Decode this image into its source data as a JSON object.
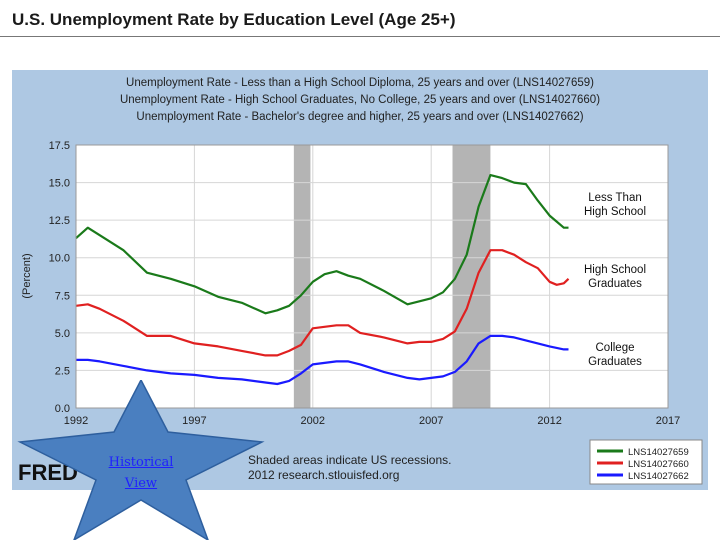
{
  "slide": {
    "title": "U.S. Unemployment Rate by Education Level (Age 25+)"
  },
  "star_link": {
    "line1": "Historical",
    "line2": "View"
  },
  "chart_data": {
    "type": "line",
    "title_lines": [
      "Unemployment Rate - Less than a High School Diploma, 25 years and over (LNS14027659)",
      "Unemployment Rate - High School Graduates, No College, 25 years and over (LNS14027660)",
      "Unemployment Rate - Bachelor's degree and higher, 25 years and over (LNS14027662)"
    ],
    "ylabel": "(Percent)",
    "xlim": [
      1992,
      2017
    ],
    "ylim": [
      0,
      17.5
    ],
    "xticks": [
      1992,
      1997,
      2002,
      2007,
      2012,
      2017
    ],
    "xtick_labels": [
      "1992",
      "1997",
      "2002",
      "2007",
      "2012",
      "2017"
    ],
    "yticks": [
      0,
      2.5,
      5,
      7.5,
      10,
      12.5,
      15,
      17.5
    ],
    "ytick_labels": [
      "0.0",
      "2.5",
      "5.0",
      "7.5",
      "10.0",
      "12.5",
      "15.0",
      "17.5"
    ],
    "grid": true,
    "recessions": [
      [
        2001.2,
        2001.9
      ],
      [
        2007.9,
        2009.5
      ]
    ],
    "recession_color": "#b4b4b4",
    "series": [
      {
        "name": "LNS14027659",
        "annotation": [
          "Less Than",
          "High School"
        ],
        "color": "#1a7a1a",
        "x": [
          1992,
          1992.5,
          1993,
          1994,
          1995,
          1996,
          1997,
          1998,
          1999,
          2000,
          2000.5,
          2001,
          2001.5,
          2002,
          2002.5,
          2003,
          2003.5,
          2004,
          2005,
          2006,
          2006.5,
          2007,
          2007.5,
          2008,
          2008.5,
          2009,
          2009.5,
          2010,
          2010.5,
          2011,
          2011.5,
          2012,
          2012.3,
          2012.6,
          2012.8
        ],
        "values": [
          11.3,
          12.0,
          11.5,
          10.5,
          9.0,
          8.6,
          8.1,
          7.4,
          7.0,
          6.3,
          6.5,
          6.8,
          7.5,
          8.4,
          8.9,
          9.1,
          8.8,
          8.6,
          7.8,
          6.9,
          7.1,
          7.3,
          7.7,
          8.6,
          10.2,
          13.4,
          15.5,
          15.3,
          15.0,
          14.9,
          13.8,
          12.8,
          12.4,
          12.0,
          12.0
        ]
      },
      {
        "name": "LNS14027660",
        "annotation": [
          "High School",
          "Graduates"
        ],
        "color": "#e02020",
        "x": [
          1992,
          1992.5,
          1993,
          1994,
          1995,
          1996,
          1997,
          1998,
          1999,
          2000,
          2000.5,
          2001,
          2001.5,
          2002,
          2002.5,
          2003,
          2003.5,
          2004,
          2005,
          2006,
          2006.5,
          2007,
          2007.5,
          2008,
          2008.5,
          2009,
          2009.5,
          2010,
          2010.5,
          2011,
          2011.5,
          2012,
          2012.3,
          2012.6,
          2012.8
        ],
        "values": [
          6.8,
          6.9,
          6.6,
          5.8,
          4.8,
          4.8,
          4.3,
          4.1,
          3.8,
          3.5,
          3.5,
          3.8,
          4.2,
          5.3,
          5.4,
          5.5,
          5.5,
          5.0,
          4.7,
          4.3,
          4.4,
          4.4,
          4.6,
          5.1,
          6.6,
          9.0,
          10.5,
          10.5,
          10.2,
          9.7,
          9.3,
          8.4,
          8.2,
          8.3,
          8.6
        ]
      },
      {
        "name": "LNS14027662",
        "annotation": [
          "College",
          "Graduates"
        ],
        "color": "#1a1aff",
        "x": [
          1992,
          1992.5,
          1993,
          1994,
          1995,
          1996,
          1997,
          1998,
          1999,
          2000,
          2000.5,
          2001,
          2001.5,
          2002,
          2002.5,
          2003,
          2003.5,
          2004,
          2005,
          2006,
          2006.5,
          2007,
          2007.5,
          2008,
          2008.5,
          2009,
          2009.5,
          2010,
          2010.5,
          2011,
          2011.5,
          2012,
          2012.3,
          2012.6,
          2012.8
        ],
        "values": [
          3.2,
          3.2,
          3.1,
          2.8,
          2.5,
          2.3,
          2.2,
          2.0,
          1.9,
          1.7,
          1.6,
          1.8,
          2.3,
          2.9,
          3.0,
          3.1,
          3.1,
          2.9,
          2.4,
          2.0,
          1.9,
          2.0,
          2.1,
          2.4,
          3.1,
          4.3,
          4.8,
          4.8,
          4.7,
          4.5,
          4.3,
          4.1,
          4.0,
          3.9,
          3.9
        ]
      }
    ],
    "footer_note": "Shaded areas indicate US recessions.",
    "footer_source": "2012 research.stlouisfed.org",
    "logo_text": "FRED"
  }
}
